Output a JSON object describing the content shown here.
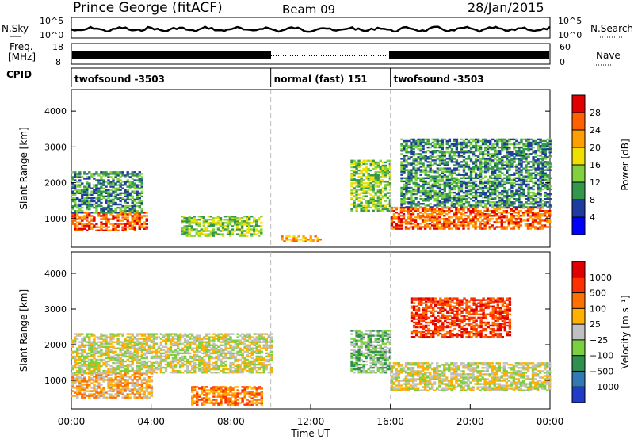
{
  "header": {
    "station": "Prince George (fitACF)",
    "beam": "Beam 09",
    "date": "28/Jan/2015"
  },
  "top_panels": {
    "nsky_label": "N.Sky",
    "nsearch_label": "N.Search",
    "freq_label_1": "Freq.",
    "freq_label_2": "[MHz]",
    "nave_label": "Nave",
    "cpid_label": "CPID",
    "nsky_ticks": [
      "10^5",
      "10^0"
    ],
    "nsearch_ticks": [
      "10^5",
      "10^0"
    ],
    "freq_ticks": [
      "18",
      "8"
    ],
    "nave_ticks": [
      "60",
      "0"
    ],
    "cpid_segments": [
      {
        "label": "twofsound -3503",
        "start": 0,
        "end": 10
      },
      {
        "label": "normal (fast) 151",
        "start": 10,
        "end": 16
      },
      {
        "label": "twofsound -3503",
        "start": 16,
        "end": 24
      }
    ]
  },
  "chart_data": [
    {
      "type": "heatmap",
      "name": "power",
      "xlabel": "",
      "ylabel": "Slant Range [km]",
      "xlim": [
        0,
        24
      ],
      "ylim": [
        200,
        4600
      ],
      "yticks": [
        1000,
        2000,
        3000,
        4000
      ],
      "colorbar_label": "Power [dB]",
      "colorbar_ticks": [
        "28",
        "24",
        "20",
        "16",
        "12",
        "8",
        "4"
      ],
      "colorbar_colors": [
        "#0000ff",
        "#1e3ca0",
        "#32964b",
        "#80d040",
        "#f0e000",
        "#ffa000",
        "#ff6000",
        "#e00000"
      ],
      "regions": [
        {
          "t0": 0.0,
          "t1": 3.8,
          "r0": 650,
          "r1": 1150,
          "level": 6
        },
        {
          "t0": 0.0,
          "t1": 3.5,
          "r0": 1150,
          "r1": 2300,
          "level": 2
        },
        {
          "t0": 5.5,
          "t1": 9.5,
          "r0": 500,
          "r1": 1050,
          "level": 3
        },
        {
          "t0": 10.5,
          "t1": 12.5,
          "r0": 350,
          "r1": 500,
          "level": 5
        },
        {
          "t0": 14.0,
          "t1": 16.0,
          "r0": 1200,
          "r1": 2600,
          "level": 3
        },
        {
          "t0": 16.0,
          "t1": 24.0,
          "r0": 700,
          "r1": 1300,
          "level": 6
        },
        {
          "t0": 16.5,
          "t1": 24.0,
          "r0": 1300,
          "r1": 3200,
          "level": 2
        }
      ]
    },
    {
      "type": "heatmap",
      "name": "velocity",
      "xlabel": "Time UT",
      "ylabel": "Slant Range [km]",
      "xlim": [
        0,
        24
      ],
      "ylim": [
        200,
        4600
      ],
      "yticks": [
        1000,
        2000,
        3000,
        4000
      ],
      "xticks": [
        "00:00",
        "04:00",
        "08:00",
        "12:00",
        "16:00",
        "20:00",
        "00:00"
      ],
      "colorbar_label": "Velocity [m s⁻¹]",
      "colorbar_ticks": [
        "1000",
        "500",
        "100",
        "25",
        "−25",
        "−100",
        "−500",
        "−1000"
      ],
      "colorbar_colors": [
        "#1e3cc8",
        "#3278b4",
        "#2f8f4f",
        "#7ad040",
        "#c0c0c0",
        "#ffb000",
        "#ff7000",
        "#ff3000",
        "#e00000"
      ],
      "regions": [
        {
          "t0": 0.0,
          "t1": 4.0,
          "r0": 500,
          "r1": 1200,
          "level": 5
        },
        {
          "t0": 0.0,
          "t1": 10.0,
          "r0": 1200,
          "r1": 2300,
          "level": 4
        },
        {
          "t0": 6.0,
          "t1": 9.5,
          "r0": 300,
          "r1": 800,
          "level": 6
        },
        {
          "t0": 14.0,
          "t1": 16.0,
          "r0": 1200,
          "r1": 2400,
          "level": 3
        },
        {
          "t0": 16.0,
          "t1": 24.0,
          "r0": 700,
          "r1": 1500,
          "level": 4
        },
        {
          "t0": 17.0,
          "t1": 22.0,
          "r0": 2200,
          "r1": 3300,
          "level": 7
        }
      ]
    }
  ]
}
